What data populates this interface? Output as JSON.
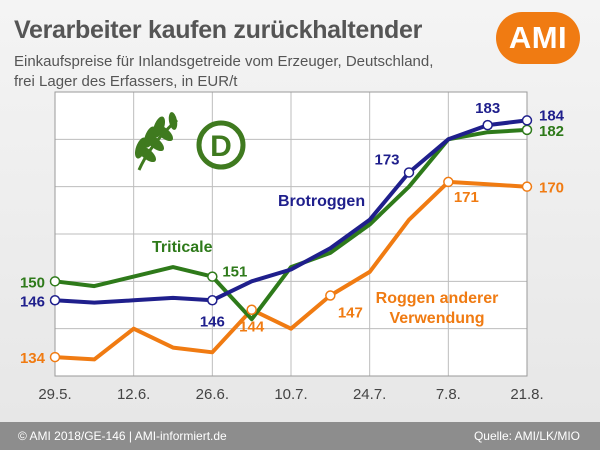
{
  "header": {
    "title": "Verarbeiter kaufen zurückhaltender",
    "subtitle_line1": "Einkaufspreise für Inlandsgetreide vom Erzeuger, Deutschland,",
    "subtitle_line2": "frei Lager des Erfassers, in EUR/t"
  },
  "logo": {
    "text": "AMI",
    "color": "#f07b12"
  },
  "emblem": {
    "icon": "wheat-ears-icon",
    "letter": "D",
    "color": "#3f7a1f"
  },
  "footer": {
    "left": "© AMI 2018/GE-146 | AMI-informiert.de",
    "right": "Quelle: AMI/LK/MIO"
  },
  "chart_data": {
    "type": "line",
    "x_ticks": [
      "29.5.",
      "12.6.",
      "26.6.",
      "10.7.",
      "24.7.",
      "7.8.",
      "21.8."
    ],
    "x": [
      "29.5.",
      "5.6.",
      "12.6.",
      "19.6.",
      "26.6.",
      "3.7.",
      "10.7.",
      "17.7.",
      "24.7.",
      "31.7.",
      "7.8.",
      "14.8.",
      "21.8."
    ],
    "ylim": [
      130,
      190
    ],
    "grid": "horizontal-and-vertical",
    "series": [
      {
        "name": "Roggen anderer Verwendung",
        "color": "#f07b12",
        "values": [
          134,
          133.5,
          140,
          136,
          135,
          144,
          140,
          147,
          152,
          163,
          171,
          170.5,
          170
        ],
        "labels": [
          {
            "index": 0,
            "text": "134"
          },
          {
            "index": 5,
            "text": "144"
          },
          {
            "index": 7,
            "text": "147"
          },
          {
            "index": 10,
            "text": "171"
          },
          {
            "index": 12,
            "text": "170"
          }
        ],
        "markers": [
          0,
          5,
          7,
          10,
          12
        ]
      },
      {
        "name": "Triticale",
        "color": "#2e7a1a",
        "values": [
          150,
          149,
          151,
          153,
          151,
          142,
          153,
          156,
          162,
          170,
          180,
          181.5,
          182
        ],
        "labels": [
          {
            "index": 0,
            "text": "150"
          },
          {
            "index": 4,
            "text": "151"
          },
          {
            "index": 12,
            "text": "182"
          }
        ],
        "markers": [
          0,
          4,
          12
        ]
      },
      {
        "name": "Brotroggen",
        "color": "#1f1f8c",
        "values": [
          146,
          145.5,
          146,
          146.5,
          146,
          150,
          152.5,
          157,
          163,
          173,
          180,
          183,
          184
        ],
        "labels": [
          {
            "index": 0,
            "text": "146"
          },
          {
            "index": 4,
            "text": "146"
          },
          {
            "index": 9,
            "text": "173"
          },
          {
            "index": 11,
            "text": "183"
          },
          {
            "index": 12,
            "text": "184"
          }
        ],
        "markers": [
          0,
          4,
          9,
          11,
          12
        ]
      }
    ],
    "series_titles": [
      {
        "series": "Brotroggen",
        "text": "Brotroggen"
      },
      {
        "series": "Triticale",
        "text": "Triticale"
      },
      {
        "series": "Roggen anderer Verwendung",
        "text": "Roggen anderer",
        "text2": "Verwendung"
      }
    ]
  }
}
